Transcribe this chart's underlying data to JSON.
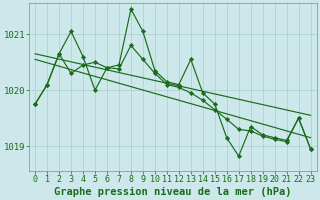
{
  "title": "Graphe pression niveau de la mer (hPa)",
  "bg_color": "#cce8ea",
  "grid_color": "#aacccc",
  "line_color": "#1a6b1a",
  "marker_color": "#1a6b1a",
  "ylim": [
    1018.55,
    1021.55
  ],
  "yticks": [
    1019,
    1020,
    1021
  ],
  "xlim": [
    -0.5,
    23.5
  ],
  "xticks": [
    0,
    1,
    2,
    3,
    4,
    5,
    6,
    7,
    8,
    9,
    10,
    11,
    12,
    13,
    14,
    15,
    16,
    17,
    18,
    19,
    20,
    21,
    22,
    23
  ],
  "series_jagged": [
    [
      1019.75,
      1020.1,
      1020.65,
      1021.05,
      1020.6,
      1020.0,
      1020.4,
      1020.45,
      1021.45,
      1021.05,
      1020.35,
      1020.15,
      1020.1,
      1020.55,
      1019.95,
      1019.75,
      1019.15,
      1018.82,
      1019.35,
      1019.2,
      1019.15,
      1019.1,
      1019.5,
      1018.95
    ],
    [
      1019.75,
      1020.1,
      1020.65,
      1020.3,
      1020.45,
      1020.5,
      1020.4,
      1020.38,
      1020.8,
      1020.55,
      1020.3,
      1020.1,
      1020.05,
      1019.95,
      1019.82,
      1019.65,
      1019.48,
      1019.3,
      1019.27,
      1019.18,
      1019.12,
      1019.08,
      1019.5,
      1018.95
    ]
  ],
  "series_linear": [
    {
      "x0": 0,
      "y0": 1020.55,
      "x1": 23,
      "y1": 1019.15
    },
    {
      "x0": 0,
      "y0": 1020.65,
      "x1": 23,
      "y1": 1019.55
    }
  ],
  "title_fontsize": 7.5,
  "tick_fontsize": 6.0,
  "figsize": [
    3.2,
    2.0
  ],
  "dpi": 100
}
